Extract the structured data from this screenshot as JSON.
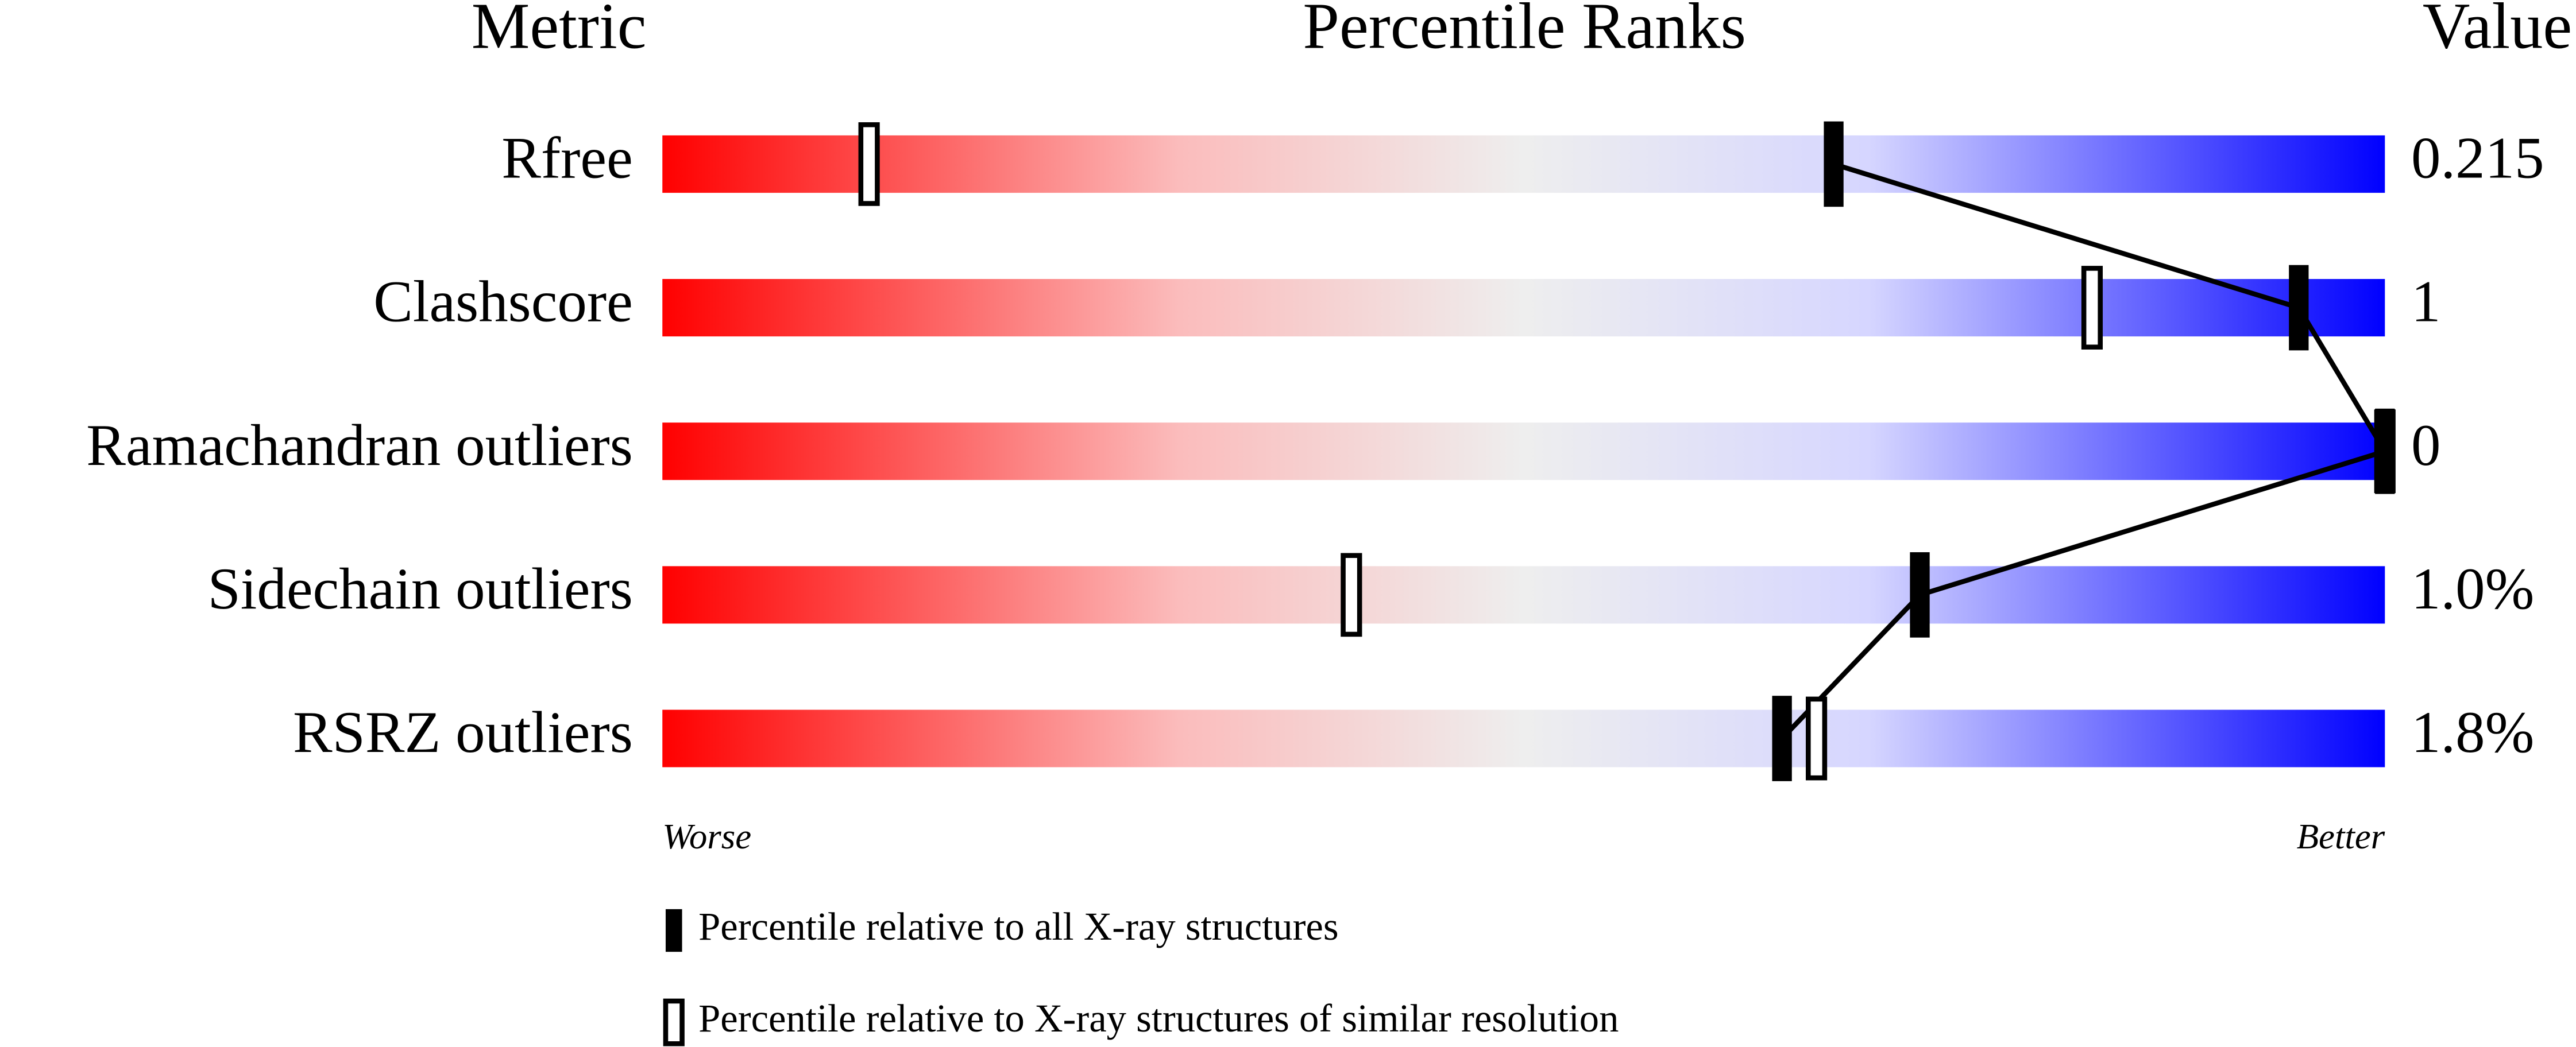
{
  "chart_data": {
    "type": "percentile",
    "column_headers": [
      "Metric",
      "Percentile Ranks",
      "Value"
    ],
    "categories": [
      "Rfree",
      "Clashscore",
      "Ramachandran outliers",
      "Sidechain outliers",
      "RSRZ outliers"
    ],
    "metric_values": [
      "0.215",
      "1",
      "0",
      "1.0%",
      "1.8%"
    ],
    "xlim": [
      0,
      100
    ],
    "scale_labels": [
      "Worse",
      "Better"
    ],
    "series": [
      {
        "name": "Percentile relative to all X-ray structures",
        "color": "#000000",
        "values": [
          68,
          95,
          100,
          73,
          65
        ]
      },
      {
        "name": "Percentile relative to X-ray structures of similar resolution",
        "color": "#ffffff",
        "values": [
          12,
          83,
          100,
          40,
          67
        ]
      }
    ]
  }
}
